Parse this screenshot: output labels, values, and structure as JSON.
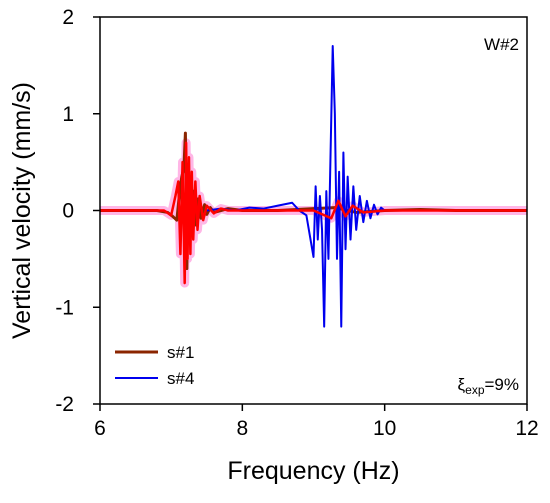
{
  "chart_data": {
    "type": "line",
    "title": "",
    "xlabel": "Frequency  (Hz)",
    "ylabel": "Vertical velocity (mm/s)",
    "xlim": [
      6,
      12
    ],
    "ylim": [
      -2,
      2
    ],
    "xticks": [
      "6",
      "8",
      "10",
      "12"
    ],
    "yticks": [
      "2",
      "1",
      "0",
      "-1",
      "-2"
    ],
    "grid": false,
    "legend_position": "bottom-left",
    "annotation_top_right": "W#2",
    "annotation_bottom_right": {
      "symbol": "ξ",
      "subscript": "exp",
      "text": "=9%"
    },
    "series": [
      {
        "name": "s#1",
        "color": "#8B2500",
        "x": [
          6.0,
          6.8,
          6.95,
          7.02,
          7.08,
          7.12,
          7.15,
          7.18,
          7.2,
          7.22,
          7.24,
          7.26,
          7.28,
          7.3,
          7.32,
          7.35,
          7.38,
          7.42,
          7.47,
          7.5,
          7.55,
          7.6,
          7.7,
          7.8,
          8.0,
          8.5,
          9.0,
          9.3,
          9.6,
          10.0,
          10.5,
          11.0,
          12.0
        ],
        "y": [
          0.0,
          0.0,
          -0.02,
          -0.06,
          -0.1,
          0.2,
          0.35,
          0.45,
          0.8,
          -0.6,
          0.4,
          -0.3,
          0.35,
          -0.2,
          0.2,
          -0.15,
          0.12,
          -0.08,
          0.06,
          -0.04,
          0.03,
          -0.02,
          0.0,
          0.02,
          0.0,
          0.0,
          0.02,
          0.03,
          -0.02,
          0.0,
          0.01,
          0.0,
          0.0
        ]
      },
      {
        "name": "s#4",
        "color": "#0000EE",
        "x": [
          7.5,
          7.7,
          7.9,
          8.1,
          8.3,
          8.5,
          8.7,
          8.8,
          8.9,
          9.0,
          9.03,
          9.06,
          9.09,
          9.12,
          9.15,
          9.18,
          9.21,
          9.24,
          9.27,
          9.3,
          9.33,
          9.36,
          9.39,
          9.42,
          9.45,
          9.48,
          9.52,
          9.56,
          9.6,
          9.65,
          9.7,
          9.75,
          9.8,
          9.85,
          9.9,
          9.95,
          10.0
        ],
        "y": [
          0.0,
          0.02,
          0.0,
          0.03,
          0.02,
          0.05,
          0.08,
          0.0,
          -0.05,
          -0.48,
          0.25,
          -0.3,
          0.15,
          -0.2,
          -1.2,
          0.2,
          -0.5,
          0.6,
          1.7,
          1.0,
          -0.5,
          0.4,
          -1.2,
          0.6,
          -0.4,
          0.35,
          -0.3,
          0.25,
          -0.2,
          0.15,
          -0.12,
          0.1,
          -0.08,
          0.06,
          -0.04,
          0.03,
          0.0
        ]
      },
      {
        "name": "",
        "color": "#FF0000",
        "x": [
          6.0,
          6.9,
          7.0,
          7.06,
          7.1,
          7.13,
          7.16,
          7.19,
          7.21,
          7.23,
          7.25,
          7.27,
          7.29,
          7.31,
          7.34,
          7.37,
          7.4,
          7.45,
          7.5,
          7.6,
          7.7,
          7.8,
          8.0,
          9.0,
          9.25,
          9.35,
          9.45,
          9.55,
          9.7,
          10.0,
          11.0,
          12.0
        ],
        "y": [
          0.0,
          0.0,
          -0.05,
          0.15,
          0.3,
          -0.45,
          0.5,
          -0.75,
          0.7,
          -0.5,
          0.55,
          -0.45,
          0.4,
          -0.3,
          0.3,
          -0.2,
          0.15,
          -0.1,
          0.05,
          -0.03,
          0.02,
          0.0,
          0.0,
          0.0,
          -0.08,
          0.1,
          -0.06,
          0.05,
          -0.02,
          0.0,
          0.0,
          0.0
        ]
      }
    ]
  }
}
